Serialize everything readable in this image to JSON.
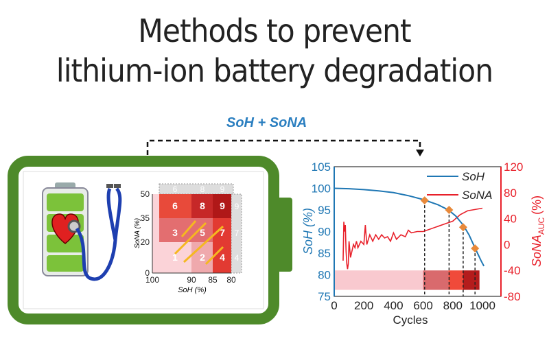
{
  "title": {
    "line1": "Methods to prevent",
    "line2": "lithium-ion battery degradation"
  },
  "connector_label": "SoH + SoNA",
  "colors": {
    "battery_green": "#4e8a2a",
    "soh_blue": "#1f77b4",
    "sona_red": "#e8202a",
    "marker": "#e8893a"
  },
  "heatmap": {
    "xlabel": "SoH (%)",
    "ylabel": "SoNA (%)",
    "x_ticks": [
      "100",
      "90",
      "85",
      "80"
    ],
    "y_ticks": [
      "0",
      "20",
      "35",
      "50"
    ],
    "cells": [
      "1",
      "2",
      "4",
      "3",
      "5",
      "7",
      "6",
      "8",
      "9"
    ],
    "top_labels": [
      "6",
      "8",
      "9"
    ],
    "side_labels": [
      "9",
      "7",
      "4"
    ]
  },
  "chart_data": {
    "type": "line",
    "xlabel": "Cycles",
    "ylabel": "SoH (%)",
    "ylabel_right": "SoNA",
    "ylabel_right_sub": "AUC",
    "ylabel_right_unit": "(%)",
    "xlim": [
      0,
      1130
    ],
    "ylim": [
      75,
      105
    ],
    "ylim_right": [
      -80,
      120
    ],
    "x_ticks": [
      "0",
      "200",
      "400",
      "600",
      "800",
      "1000"
    ],
    "y_ticks": [
      "75",
      "80",
      "85",
      "90",
      "95",
      "100",
      "105"
    ],
    "y_ticks_right": [
      "-80",
      "-40",
      "0",
      "40",
      "80",
      "120"
    ],
    "legend": "top-right",
    "series": [
      {
        "name": "SoH",
        "axis": "left",
        "x": [
          0,
          100,
          200,
          300,
          400,
          500,
          600,
          700,
          770,
          820,
          870,
          910,
          950,
          990,
          1010
        ],
        "y": [
          100,
          99.9,
          99.7,
          99.4,
          99.0,
          98.3,
          97.4,
          96.2,
          95.0,
          93.6,
          91.5,
          89.2,
          86.2,
          83.3,
          82
        ]
      },
      {
        "name": "SoNA",
        "axis": "right",
        "x": [
          60,
          65,
          70,
          75,
          80,
          85,
          90,
          95,
          100,
          110,
          120,
          130,
          140,
          150,
          160,
          180,
          200,
          210,
          220,
          240,
          260,
          280,
          300,
          320,
          340,
          360,
          380,
          400,
          420,
          450,
          480,
          500,
          520,
          560,
          600,
          650,
          700,
          750,
          800,
          850,
          900,
          950,
          1000
        ],
        "y": [
          -25,
          35,
          20,
          30,
          -10,
          -30,
          -38,
          -30,
          5,
          -20,
          -10,
          0,
          -5,
          5,
          -5,
          5,
          0,
          30,
          0,
          15,
          5,
          15,
          8,
          15,
          10,
          12,
          5,
          18,
          8,
          15,
          12,
          22,
          18,
          20,
          20,
          24,
          28,
          32,
          36,
          46,
          52,
          54,
          56
        ]
      }
    ],
    "markers": {
      "x": [
        610,
        775,
        870,
        950
      ],
      "y": [
        97.2,
        95,
        91,
        86.1
      ]
    },
    "bands": [
      {
        "from": 0,
        "to": 600,
        "color": "#f9c9cf"
      },
      {
        "from": 600,
        "to": 770,
        "color": "#d96a6d"
      },
      {
        "from": 770,
        "to": 870,
        "color": "#f04a3a"
      },
      {
        "from": 870,
        "to": 980,
        "color": "#b41c1c"
      }
    ],
    "band_y": [
      76.5,
      81
    ],
    "dividers_x": [
      610,
      775,
      870,
      950
    ]
  }
}
